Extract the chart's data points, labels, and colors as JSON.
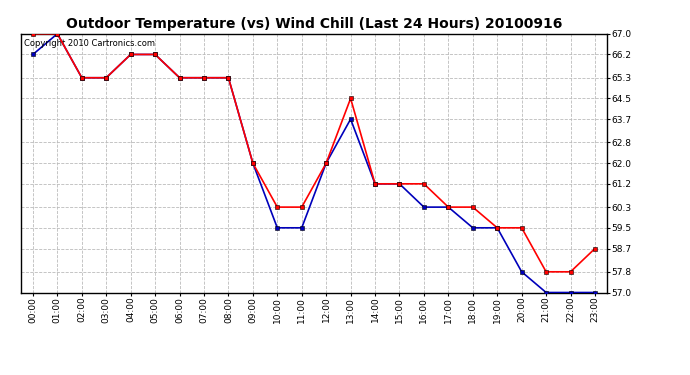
{
  "title": "Outdoor Temperature (vs) Wind Chill (Last 24 Hours) 20100916",
  "copyright": "Copyright 2010 Cartronics.com",
  "hours": [
    "00:00",
    "01:00",
    "02:00",
    "03:00",
    "04:00",
    "05:00",
    "06:00",
    "07:00",
    "08:00",
    "09:00",
    "10:00",
    "11:00",
    "12:00",
    "13:00",
    "14:00",
    "15:00",
    "16:00",
    "17:00",
    "18:00",
    "19:00",
    "20:00",
    "21:00",
    "22:00",
    "23:00"
  ],
  "temp": [
    67.0,
    67.0,
    65.3,
    65.3,
    66.2,
    66.2,
    65.3,
    65.3,
    65.3,
    62.0,
    60.3,
    60.3,
    62.0,
    64.5,
    61.2,
    61.2,
    61.2,
    60.3,
    60.3,
    59.5,
    59.5,
    57.8,
    57.8,
    58.7
  ],
  "windchill": [
    66.2,
    67.0,
    65.3,
    65.3,
    66.2,
    66.2,
    65.3,
    65.3,
    65.3,
    62.0,
    59.5,
    59.5,
    62.0,
    63.7,
    61.2,
    61.2,
    60.3,
    60.3,
    59.5,
    59.5,
    57.8,
    57.0,
    57.0,
    57.0
  ],
  "temp_color": "#ff0000",
  "windchill_color": "#0000bb",
  "ylim_min": 57.0,
  "ylim_max": 67.0,
  "yticks": [
    57.0,
    57.8,
    58.7,
    59.5,
    60.3,
    61.2,
    62.0,
    62.8,
    63.7,
    64.5,
    65.3,
    66.2,
    67.0
  ],
  "bg_color": "#ffffff",
  "grid_color": "#bbbbbb",
  "markersize": 3.5,
  "linewidth": 1.2,
  "title_fontsize": 10,
  "tick_fontsize": 6.5
}
